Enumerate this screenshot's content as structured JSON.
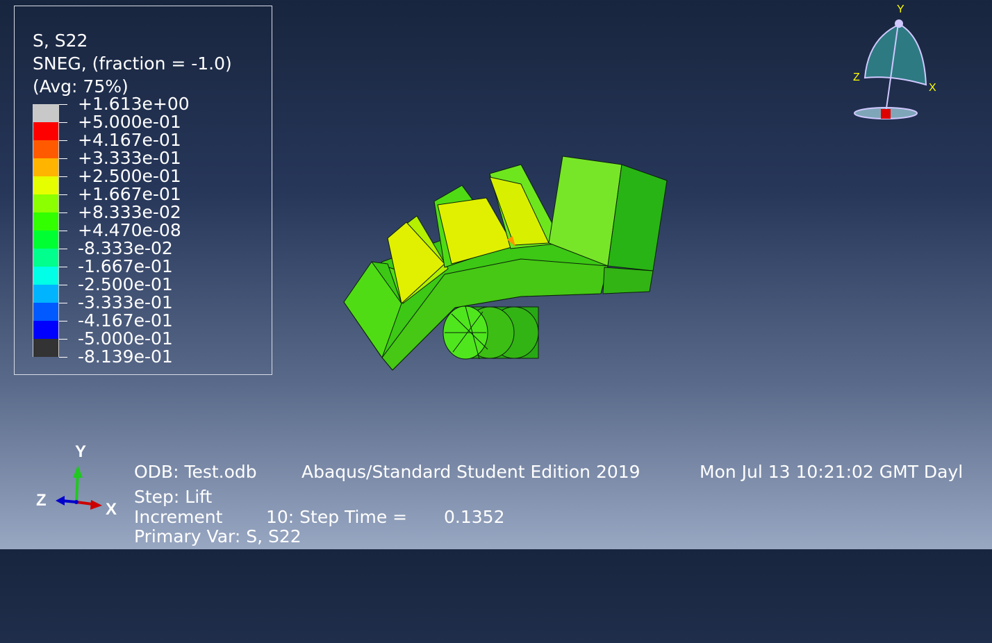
{
  "legend": {
    "title_lines": [
      "S, S22",
      "SNEG, (fraction = -1.0)",
      "(Avg: 75%)"
    ],
    "levels": [
      {
        "label": "+1.613e+00",
        "color": "#c8c8c8"
      },
      {
        "label": "+5.000e-01",
        "color": "#ff0000"
      },
      {
        "label": "+4.167e-01",
        "color": "#ff5a00"
      },
      {
        "label": "+3.333e-01",
        "color": "#ffb400"
      },
      {
        "label": "+2.500e-01",
        "color": "#e6ff00"
      },
      {
        "label": "+1.667e-01",
        "color": "#8cff00"
      },
      {
        "label": "+8.333e-02",
        "color": "#32ff00"
      },
      {
        "label": "+4.470e-08",
        "color": "#00ff32"
      },
      {
        "label": "-8.333e-02",
        "color": "#00ff8c"
      },
      {
        "label": "-1.667e-01",
        "color": "#00ffe6"
      },
      {
        "label": "-2.500e-01",
        "color": "#00b4ff"
      },
      {
        "label": "-3.333e-01",
        "color": "#005aff"
      },
      {
        "label": "-4.167e-01",
        "color": "#0000ff"
      },
      {
        "label": "-5.000e-01",
        "color": "#333333"
      },
      {
        "label": "-8.139e-01",
        "color": null
      }
    ]
  },
  "info": {
    "odb": "ODB: Test.odb",
    "product": "Abaqus/Standard Student Edition 2019",
    "timestamp": "Mon Jul 13 10:21:02 GMT Dayl",
    "step": "Step: Lift",
    "increment_label": "Increment",
    "increment_value": "10: Step Time =",
    "step_time": "0.1352",
    "primary_var": "Primary Var: S, S22"
  },
  "triad": {
    "x": "X",
    "y": "Y",
    "z": "Z"
  },
  "view_triad": {
    "x": "X",
    "y": "Y",
    "z": "Z"
  }
}
